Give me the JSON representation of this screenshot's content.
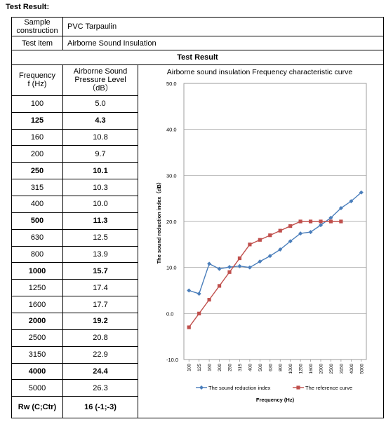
{
  "heading": "Test Result:",
  "sample": {
    "label_line1": "Sample",
    "label_line2": "construction",
    "value": "PVC Tarpaulin"
  },
  "test_item": {
    "label": "Test item",
    "value": "Airborne Sound Insulation"
  },
  "section_title": "Test Result",
  "columns": {
    "freq_line1": "Frequency",
    "freq_line2": "f (Hz)",
    "level_line1": "Airborne Sound",
    "level_line2": "Pressure Level",
    "level_line3": "（dB）"
  },
  "rows": [
    {
      "freq": "100",
      "value": "5.0",
      "bold": false
    },
    {
      "freq": "125",
      "value": "4.3",
      "bold": true
    },
    {
      "freq": "160",
      "value": "10.8",
      "bold": false
    },
    {
      "freq": "200",
      "value": "9.7",
      "bold": false
    },
    {
      "freq": "250",
      "value": "10.1",
      "bold": true
    },
    {
      "freq": "315",
      "value": "10.3",
      "bold": false
    },
    {
      "freq": "400",
      "value": "10.0",
      "bold": false
    },
    {
      "freq": "500",
      "value": "11.3",
      "bold": true
    },
    {
      "freq": "630",
      "value": "12.5",
      "bold": false
    },
    {
      "freq": "800",
      "value": "13.9",
      "bold": false
    },
    {
      "freq": "1000",
      "value": "15.7",
      "bold": true
    },
    {
      "freq": "1250",
      "value": "17.4",
      "bold": false
    },
    {
      "freq": "1600",
      "value": "17.7",
      "bold": false
    },
    {
      "freq": "2000",
      "value": "19.2",
      "bold": true
    },
    {
      "freq": "2500",
      "value": "20.8",
      "bold": false
    },
    {
      "freq": "3150",
      "value": "22.9",
      "bold": false
    },
    {
      "freq": "4000",
      "value": "24.4",
      "bold": true
    },
    {
      "freq": "5000",
      "value": "26.3",
      "bold": false
    }
  ],
  "rw": {
    "label": "Rw (C;Ctr)",
    "value": "16 (-1;-3)"
  },
  "chart_data": {
    "type": "line",
    "title": "Airborne sound insulation Frequency characteristic curve",
    "xlabel": "Frequency (Hz)",
    "ylabel": "The sound reduction index（dB）",
    "categories": [
      "100",
      "125",
      "160",
      "200",
      "250",
      "315",
      "400",
      "500",
      "630",
      "800",
      "1000",
      "1250",
      "1600",
      "2000",
      "2500",
      "3150",
      "4000",
      "5000"
    ],
    "ylim": [
      -10,
      50
    ],
    "yticks": [
      "-10.0",
      "0.0",
      "10.0",
      "20.0",
      "30.0",
      "40.0",
      "50.0"
    ],
    "grid": true,
    "legend_position": "bottom",
    "series": [
      {
        "name": "The sound reduction index",
        "color": "#4a7ebb",
        "marker": "diamond",
        "values": [
          5.0,
          4.3,
          10.8,
          9.7,
          10.1,
          10.3,
          10.0,
          11.3,
          12.5,
          13.9,
          15.7,
          17.4,
          17.7,
          19.2,
          20.8,
          22.9,
          24.4,
          26.3
        ]
      },
      {
        "name": "The reference curve",
        "color": "#c0504d",
        "marker": "square",
        "values": [
          -3,
          0,
          3,
          6,
          9,
          12,
          15,
          16,
          17,
          18,
          19,
          20,
          20,
          20,
          20,
          20,
          null,
          null
        ]
      }
    ]
  }
}
